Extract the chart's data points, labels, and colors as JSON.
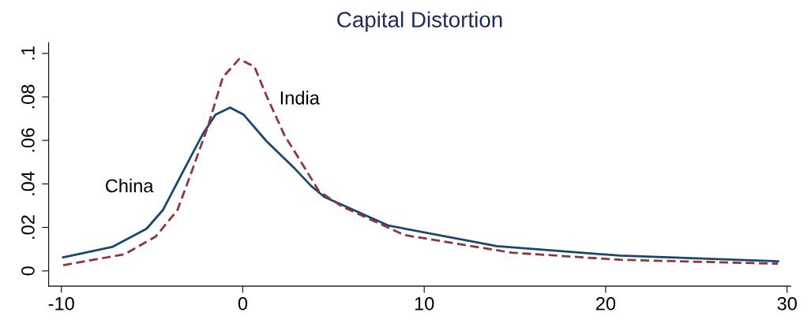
{
  "chart_data": {
    "type": "line",
    "title": "Capital Distortion",
    "xlim": [
      -10.7,
      30.2
    ],
    "xticks": [
      {
        "value": -10,
        "label": "-10"
      },
      0,
      10,
      20,
      30
    ],
    "ylim": [
      -0.007,
      0.105
    ],
    "yticks": [
      0,
      {
        "value": 0.02,
        "label": ".02"
      },
      {
        "value": 0.04,
        "label": ".04"
      },
      {
        "value": 0.06,
        "label": ".06"
      },
      {
        "value": 0.08,
        "label": ".08"
      },
      {
        "value": 0.1,
        "label": ".1"
      }
    ],
    "grid": false,
    "legend": false,
    "marker": "none",
    "series": [
      {
        "name": "China",
        "color": "#1a476f",
        "line_style": "solid",
        "x": [
          -9.9,
          -7.2,
          -5.3,
          -4.4,
          -3.4,
          -2.2,
          -1.5,
          -0.7,
          0.05,
          1.3,
          2.8,
          3.75,
          4.5,
          8.0,
          14.0,
          20.8,
          29.5
        ],
        "values": [
          0.0062,
          0.011,
          0.0194,
          0.028,
          0.044,
          0.063,
          0.0718,
          0.0751,
          0.0718,
          0.0597,
          0.0476,
          0.0392,
          0.034,
          0.0209,
          0.0114,
          0.007,
          0.0044
        ]
      },
      {
        "name": "India",
        "color": "#90353b",
        "line_style": "dashed",
        "x": [
          -9.9,
          -6.5,
          -4.8,
          -3.6,
          -2.8,
          -1.9,
          -1.1,
          -0.2,
          0.65,
          1.3,
          2.3,
          3.5,
          4.2,
          5.45,
          8.9,
          14.8,
          20.8,
          29.5
        ],
        "values": [
          0.0026,
          0.0077,
          0.0158,
          0.028,
          0.046,
          0.067,
          0.089,
          0.0974,
          0.0938,
          0.0806,
          0.0623,
          0.0462,
          0.0366,
          0.0297,
          0.0165,
          0.0084,
          0.0051,
          0.0033
        ]
      }
    ]
  }
}
